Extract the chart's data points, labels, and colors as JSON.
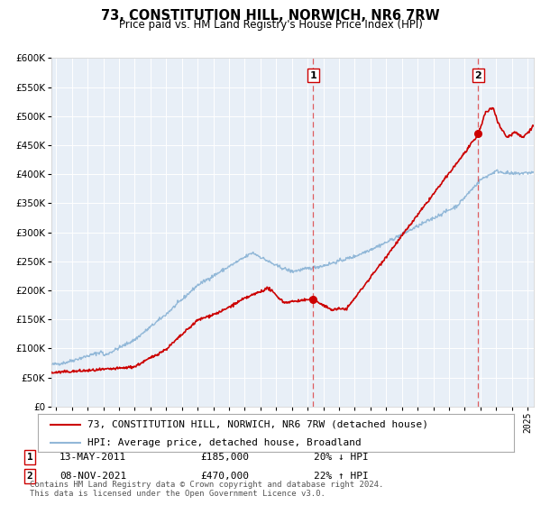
{
  "title": "73, CONSTITUTION HILL, NORWICH, NR6 7RW",
  "subtitle": "Price paid vs. HM Land Registry's House Price Index (HPI)",
  "ylim": [
    0,
    600000
  ],
  "yticks": [
    0,
    50000,
    100000,
    150000,
    200000,
    250000,
    300000,
    350000,
    400000,
    450000,
    500000,
    550000,
    600000
  ],
  "xlim_start": 1994.7,
  "xlim_end": 2025.4,
  "red_color": "#cc0000",
  "blue_color": "#92b8d8",
  "vline_color": "#dd4444",
  "bg_color": "#e8eff7",
  "marker1_year": 2011.36,
  "marker1_value": 185000,
  "marker2_year": 2021.86,
  "marker2_value": 470000,
  "legend_line1": "73, CONSTITUTION HILL, NORWICH, NR6 7RW (detached house)",
  "legend_line2": "HPI: Average price, detached house, Broadland",
  "annotation1_date": "13-MAY-2011",
  "annotation1_price": "£185,000",
  "annotation1_hpi": "20% ↓ HPI",
  "annotation2_date": "08-NOV-2021",
  "annotation2_price": "£470,000",
  "annotation2_hpi": "22% ↑ HPI",
  "footer": "Contains HM Land Registry data © Crown copyright and database right 2024.\nThis data is licensed under the Open Government Licence v3.0."
}
